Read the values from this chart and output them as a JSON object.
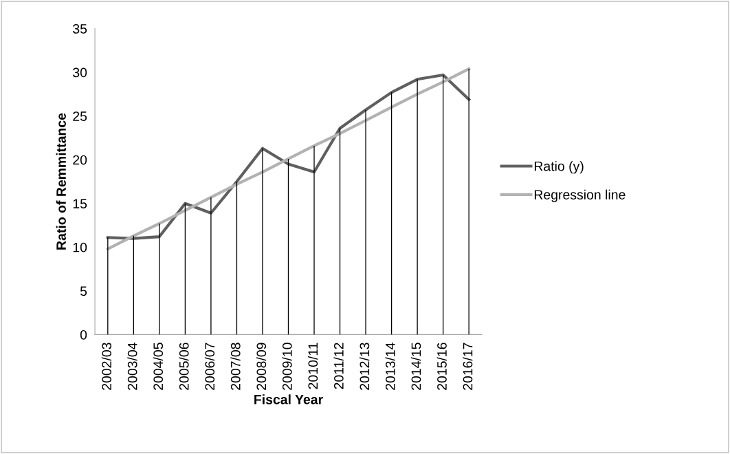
{
  "chart_data": {
    "type": "line",
    "xlabel": "Fiscal Year",
    "ylabel": "Ratio of Remmittance",
    "categories": [
      "2002/03",
      "2003/04",
      "2004/05",
      "2005/06",
      "2006/07",
      "2007/08",
      "2008/09",
      "2009/10",
      "2010/11",
      "2011/12",
      "2012/13",
      "2013/14",
      "2014/15",
      "2015/16",
      "2016/17"
    ],
    "series": [
      {
        "name": "Ratio (y)",
        "color": "#5f5f5f",
        "values": [
          11.1,
          11.0,
          11.2,
          15.0,
          13.9,
          17.5,
          21.3,
          19.5,
          18.6,
          23.6,
          25.7,
          27.7,
          29.2,
          29.7,
          26.9
        ]
      },
      {
        "name": "Regression line",
        "color": "#b2b2b2",
        "values": [
          9.8,
          11.3,
          12.7,
          14.2,
          15.7,
          17.2,
          18.6,
          20.1,
          21.6,
          23.0,
          24.5,
          26.0,
          27.5,
          28.9,
          30.4
        ]
      },
      {
        "type": "bar",
        "color": "#000000",
        "values": [
          11.1,
          11.3,
          12.7,
          15.0,
          15.7,
          17.5,
          21.3,
          20.1,
          21.6,
          23.6,
          25.7,
          27.7,
          29.2,
          29.7,
          30.4
        ]
      }
    ],
    "ylim": [
      0,
      35
    ],
    "yticks": [
      0,
      5,
      10,
      15,
      20,
      25,
      30,
      35
    ],
    "grid": false,
    "legend": "right",
    "marker": "none",
    "line_style": "solid"
  }
}
